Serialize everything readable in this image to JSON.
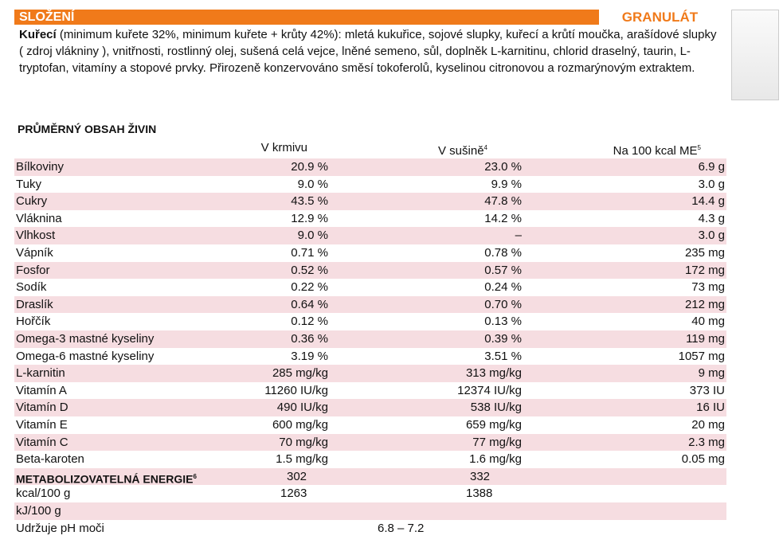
{
  "header": {
    "title": "SLOŽENÍ",
    "format": "GRANULÁT"
  },
  "ingredients": {
    "lead": "Kuřecí",
    "text": " (minimum kuřete 32%, minimum kuřete + krůty 42%): mletá kukuřice, sojové slupky, kuřecí a krůtí moučka, arašídové slupky ( zdroj vlákniny ), vnitřnosti, rostlinný olej, sušená celá vejce, lněné semeno, sůl, doplněk L-karnitinu, chlorid draselný, taurin, L-tryptofan, vitamíny a stopové prvky. Přirozeně konzervováno směsí tokoferolů, kyselinou citronovou a rozmarýnovým extraktem."
  },
  "table": {
    "title": "PRŮMĚRNÝ OBSAH ŽIVIN",
    "columns": [
      {
        "label": "V krmivu"
      },
      {
        "label": "V sušině",
        "sup": "4"
      },
      {
        "label": "Na 100 kcal ME",
        "sup": "5"
      }
    ],
    "rows": [
      [
        "Bílkoviny",
        "20.9 %",
        "23.0 %",
        "6.9 g"
      ],
      [
        "Tuky",
        "9.0 %",
        "9.9 %",
        "3.0 g"
      ],
      [
        "Cukry",
        "43.5 %",
        "47.8 %",
        "14.4 g"
      ],
      [
        "Vláknina",
        "12.9 %",
        "14.2 %",
        "4.3 g"
      ],
      [
        "Vlhkost",
        "9.0 %",
        "–",
        "3.0 g"
      ],
      [
        "Vápník",
        "0.71 %",
        "0.78 %",
        "235 mg"
      ],
      [
        "Fosfor",
        "0.52 %",
        "0.57 %",
        "172 mg"
      ],
      [
        "Sodík",
        "0.22 %",
        "0.24 %",
        "73 mg"
      ],
      [
        "Draslík",
        "0.64 %",
        "0.70 %",
        "212 mg"
      ],
      [
        "Hořčík",
        "0.12 %",
        "0.13 %",
        "40 mg"
      ],
      [
        "Omega-3 mastné kyseliny",
        "0.36 %",
        "0.39 %",
        "119 mg"
      ],
      [
        "Omega-6 mastné kyseliny",
        "3.19 %",
        "3.51 %",
        "1057 mg"
      ],
      [
        "L-karnitin",
        "285 mg/kg",
        "313 mg/kg",
        "9 mg"
      ],
      [
        "Vitamín A",
        "11260 IU/kg",
        "12374 IU/kg",
        "373 IU"
      ],
      [
        "Vitamín D",
        "490 IU/kg",
        "538 IU/kg",
        "16 IU"
      ],
      [
        "Vitamín E",
        "600 mg/kg",
        "659 mg/kg",
        "20 mg"
      ],
      [
        "Vitamín C",
        "70 mg/kg",
        "77 mg/kg",
        "2.3 mg"
      ],
      [
        "Beta-karoten",
        "1.5 mg/kg",
        "1.6 mg/kg",
        "0.05 mg"
      ]
    ],
    "energy": {
      "label": "METABOLIZOVATELNÁ ENERGIE",
      "sup": "6",
      "feed": "302",
      "dry": "332"
    },
    "kcal": {
      "label": "kcal/100 g",
      "feed": "1263",
      "dry": "1388"
    },
    "kj": {
      "label": "kJ/100 g"
    },
    "ph": {
      "label": "Udržuje pH moči",
      "value": "6.8 – 7.2"
    }
  }
}
